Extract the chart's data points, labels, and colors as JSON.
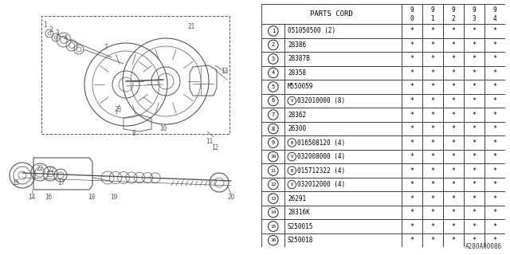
{
  "background_color": "#ffffff",
  "table_header": "PARTS CORD",
  "year_cols": [
    "9\n0",
    "9\n1",
    "9\n2",
    "9\n3",
    "9\n4"
  ],
  "parts": [
    {
      "num": "1",
      "code": "051050500 (2)",
      "prefix": ""
    },
    {
      "num": "2",
      "code": "28386",
      "prefix": ""
    },
    {
      "num": "3",
      "code": "28387B",
      "prefix": ""
    },
    {
      "num": "4",
      "code": "28358",
      "prefix": ""
    },
    {
      "num": "5",
      "code": "M550059",
      "prefix": ""
    },
    {
      "num": "6",
      "code": "032010000 (8)",
      "prefix": "V"
    },
    {
      "num": "7",
      "code": "28362",
      "prefix": ""
    },
    {
      "num": "8",
      "code": "26300",
      "prefix": ""
    },
    {
      "num": "9",
      "code": "016508120 (4)",
      "prefix": "B"
    },
    {
      "num": "10",
      "code": "032008000 (4)",
      "prefix": "V"
    },
    {
      "num": "11",
      "code": "015712322 (4)",
      "prefix": "B"
    },
    {
      "num": "12",
      "code": "032012000 (4)",
      "prefix": "V"
    },
    {
      "num": "13",
      "code": "26291",
      "prefix": ""
    },
    {
      "num": "14",
      "code": "28316K",
      "prefix": ""
    },
    {
      "num": "15",
      "code": "S250015",
      "prefix": ""
    },
    {
      "num": "16",
      "code": "S250018",
      "prefix": ""
    }
  ],
  "star": "*",
  "watermark": "A280A00086",
  "line_color": "#555555"
}
